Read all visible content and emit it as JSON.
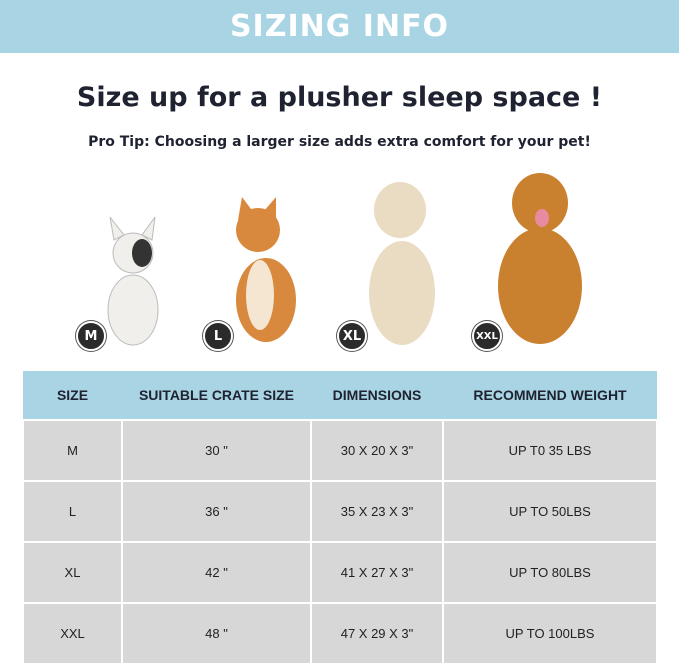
{
  "banner": "SIZING INFO",
  "title": "Size up for a plusher sleep space !",
  "tip": "Pro Tip: Choosing a larger size adds extra comfort for your pet!",
  "dogs": [
    {
      "badge": "M",
      "color": "#f1efec"
    },
    {
      "badge": "L",
      "color": "#d9893e"
    },
    {
      "badge": "XL",
      "color": "#e9dcc3"
    },
    {
      "badge": "XXL",
      "color": "#c9812f"
    }
  ],
  "table": {
    "headers": [
      "SIZE",
      "SUITABLE CRATE SIZE",
      "DIMENSIONS",
      "RECOMMEND WEIGHT"
    ],
    "rows": [
      [
        "M",
        "30 \"",
        "30 X 20 X 3\"",
        "UP T0 35 LBS"
      ],
      [
        "L",
        "36 \"",
        "35 X 23 X 3\"",
        "UP TO 50LBS"
      ],
      [
        "XL",
        "42 \"",
        "41 X 27 X 3\"",
        "UP TO 80LBS"
      ],
      [
        "XXL",
        "48 \"",
        "47 X 29 X 3\"",
        "UP TO 100LBS"
      ]
    ]
  }
}
